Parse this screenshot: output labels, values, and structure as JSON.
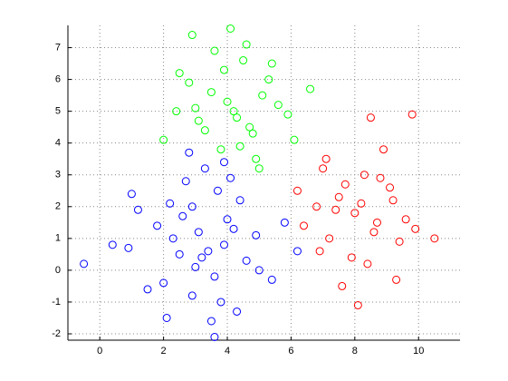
{
  "chart_data": {
    "type": "scatter",
    "grid": true,
    "xlim": [
      -1,
      11.3
    ],
    "ylim": [
      -2.2,
      7.7
    ],
    "xticks": [
      0,
      2,
      4,
      6,
      8,
      10
    ],
    "yticks": [
      -2,
      -1,
      0,
      1,
      2,
      3,
      4,
      5,
      6,
      7
    ],
    "series": [
      {
        "color": "#0000ff",
        "x": [
          3.1,
          2.5,
          4.0,
          3.6,
          2.2,
          3.9,
          4.6,
          1.8,
          3.3,
          2.9,
          3.7,
          4.3,
          2.0,
          1.2,
          3.0,
          4.9,
          2.7,
          3.5,
          0.9,
          -0.5,
          0.4,
          5.4,
          5.8,
          3.8,
          2.6,
          3.2,
          4.1,
          1.5,
          2.3,
          4.4,
          3.4,
          2.8,
          5.0,
          1.0,
          3.6,
          4.2,
          2.1,
          3.9,
          6.2,
          2.9
        ],
        "values": [
          1.2,
          0.5,
          1.6,
          -0.2,
          2.1,
          0.8,
          0.3,
          1.4,
          3.2,
          -0.8,
          2.5,
          -1.3,
          -0.4,
          1.9,
          0.1,
          1.1,
          2.8,
          -1.6,
          0.7,
          0.2,
          0.8,
          -0.3,
          1.5,
          -1.0,
          1.7,
          0.4,
          2.9,
          -0.6,
          1.0,
          2.2,
          0.6,
          3.7,
          0.0,
          2.4,
          -2.1,
          1.3,
          -1.5,
          3.4,
          0.6,
          2.0
        ]
      },
      {
        "color": "#00ff00",
        "x": [
          4.2,
          3.5,
          4.8,
          5.3,
          3.1,
          2.9,
          4.5,
          5.9,
          3.8,
          4.0,
          2.5,
          5.1,
          6.1,
          3.3,
          4.6,
          2.0,
          4.9,
          5.6,
          3.6,
          4.3,
          2.8,
          5.0,
          4.1,
          3.0,
          6.6,
          4.7,
          3.9,
          5.4,
          2.4,
          4.4
        ],
        "values": [
          5.0,
          5.6,
          4.3,
          6.0,
          4.7,
          7.4,
          6.6,
          4.9,
          3.8,
          5.3,
          6.2,
          5.5,
          4.1,
          4.4,
          7.1,
          4.1,
          3.5,
          5.2,
          6.9,
          4.8,
          5.9,
          3.2,
          7.6,
          5.1,
          5.7,
          4.5,
          6.3,
          6.5,
          5.0,
          3.9
        ]
      },
      {
        "color": "#ff0000",
        "x": [
          8.0,
          7.5,
          8.6,
          9.1,
          7.2,
          8.3,
          9.6,
          6.8,
          7.9,
          8.8,
          7.0,
          9.3,
          6.4,
          8.5,
          7.7,
          9.9,
          8.1,
          6.9,
          8.9,
          7.4,
          10.5,
          8.2,
          9.4,
          6.2,
          7.6,
          8.7,
          9.8,
          7.1,
          8.4,
          9.2
        ],
        "values": [
          1.8,
          2.3,
          1.2,
          2.6,
          1.0,
          3.0,
          1.6,
          2.0,
          0.4,
          2.9,
          3.2,
          -0.3,
          1.4,
          4.8,
          2.7,
          1.3,
          -1.1,
          0.6,
          3.8,
          1.9,
          1.0,
          2.1,
          0.9,
          2.5,
          -0.5,
          1.5,
          4.9,
          3.5,
          0.2,
          2.2
        ]
      }
    ]
  }
}
